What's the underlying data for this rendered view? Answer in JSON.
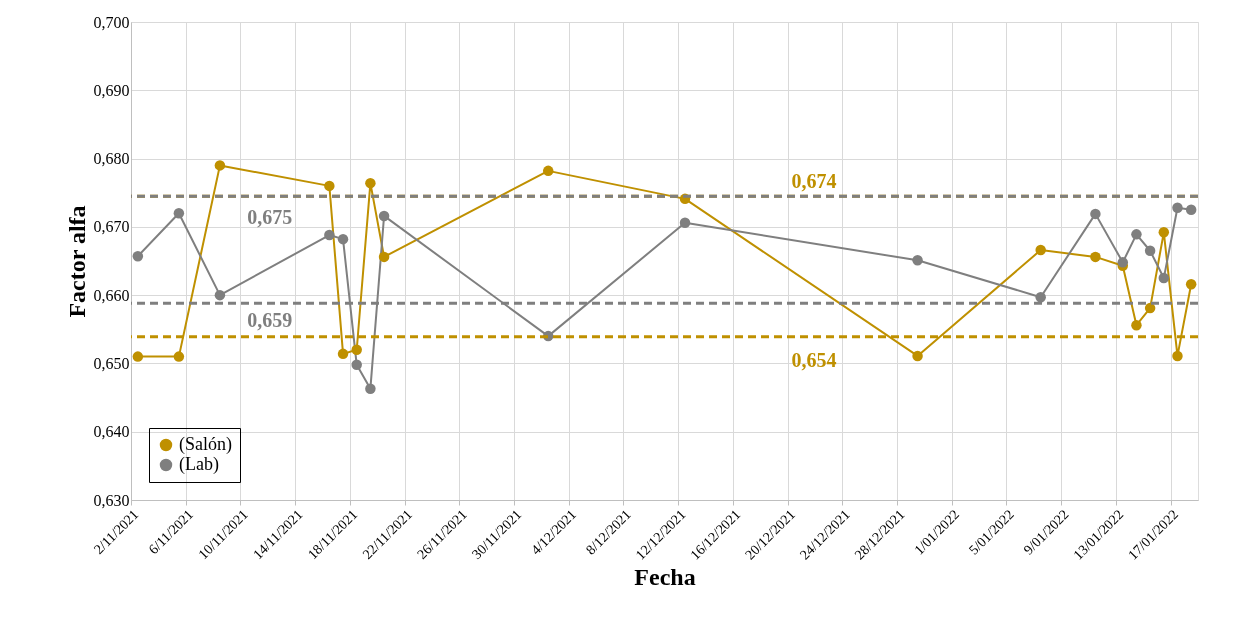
{
  "chart_data": {
    "type": "line",
    "xlabel": "Fecha",
    "ylabel": "Factor alfa",
    "x": [
      "2021-11-02T12:00",
      "2021-11-05T12:00",
      "2021-11-08T12:00",
      "2021-11-16T12:00",
      "2021-11-17T12:00",
      "2021-11-18T12:00",
      "2021-11-19T12:00",
      "2021-11-20T12:00",
      "2021-12-02T12:00",
      "2021-12-12T12:00",
      "2021-12-29T12:00",
      "2022-01-07T12:00",
      "2022-01-11T12:00",
      "2022-01-13T12:00",
      "2022-01-14T12:00",
      "2022-01-15T12:00",
      "2022-01-16T12:00",
      "2022-01-17T12:00",
      "2022-01-18T12:00"
    ],
    "series": [
      {
        "name": "(Salón)",
        "color": "#bf9000",
        "values": [
          0.651,
          0.651,
          0.679,
          0.676,
          0.6514,
          0.652,
          0.6764,
          0.6656,
          0.6782,
          0.6741,
          0.6511,
          0.6666,
          0.6656,
          0.6643,
          0.6556,
          0.6581,
          0.6692,
          0.6511,
          0.6616
        ]
      },
      {
        "name": "(Lab)",
        "color": "#7f7f7f",
        "values": [
          0.6657,
          0.672,
          0.66,
          0.6688,
          0.6682,
          0.6498,
          0.6463,
          0.6716,
          0.654,
          0.6706,
          0.6651,
          0.6597,
          0.6719,
          0.6648,
          0.6689,
          0.6665,
          0.6625,
          0.6728,
          0.6725
        ]
      }
    ],
    "ref_lines": [
      {
        "axis": "y",
        "value": 0.6745,
        "label": "0,674",
        "color": "#bf9000",
        "line_style": "dashed"
      },
      {
        "axis": "y",
        "value": 0.6745,
        "label": "0,675",
        "color": "#7f7f7f",
        "line_style": "dashed"
      },
      {
        "axis": "y",
        "value": 0.6588,
        "label": "0,659",
        "color": "#7f7f7f",
        "line_style": "dashed"
      },
      {
        "axis": "y",
        "value": 0.6539,
        "label": "0,654",
        "color": "#bf9000",
        "line_style": "dashed"
      }
    ],
    "xlim": [
      "2021-11-02",
      "2022-01-19"
    ],
    "xticks": [
      {
        "value": "2021-11-02",
        "label": "2/11/2021"
      },
      {
        "value": "2021-11-06",
        "label": "6/11/2021"
      },
      {
        "value": "2021-11-10",
        "label": "10/11/2021"
      },
      {
        "value": "2021-11-14",
        "label": "14/11/2021"
      },
      {
        "value": "2021-11-18",
        "label": "18/11/2021"
      },
      {
        "value": "2021-11-22",
        "label": "22/11/2021"
      },
      {
        "value": "2021-11-26",
        "label": "26/11/2021"
      },
      {
        "value": "2021-11-30",
        "label": "30/11/2021"
      },
      {
        "value": "2021-12-04",
        "label": "4/12/2021"
      },
      {
        "value": "2021-12-08",
        "label": "8/12/2021"
      },
      {
        "value": "2021-12-12",
        "label": "12/12/2021"
      },
      {
        "value": "2021-12-16",
        "label": "16/12/2021"
      },
      {
        "value": "2021-12-20",
        "label": "20/12/2021"
      },
      {
        "value": "2021-12-24",
        "label": "24/12/2021"
      },
      {
        "value": "2021-12-28",
        "label": "28/12/2021"
      },
      {
        "value": "2022-01-01",
        "label": "1/01/2022"
      },
      {
        "value": "2022-01-05",
        "label": "5/01/2022"
      },
      {
        "value": "2022-01-09",
        "label": "9/01/2022"
      },
      {
        "value": "2022-01-13",
        "label": "13/01/2022"
      },
      {
        "value": "2022-01-17",
        "label": "17/01/2022"
      }
    ],
    "ylim": [
      0.63,
      0.7
    ],
    "yticks": [
      {
        "value": 0.63,
        "label": "0,630"
      },
      {
        "value": 0.64,
        "label": "0,640"
      },
      {
        "value": 0.65,
        "label": "0,650"
      },
      {
        "value": 0.66,
        "label": "0,660"
      },
      {
        "value": 0.67,
        "label": "0,670"
      },
      {
        "value": 0.68,
        "label": "0,680"
      },
      {
        "value": 0.69,
        "label": "0,690"
      },
      {
        "value": 0.7,
        "label": "0,700"
      }
    ],
    "grid": true,
    "legend": "bottom left",
    "marker": "circle",
    "line_style": "solid"
  }
}
